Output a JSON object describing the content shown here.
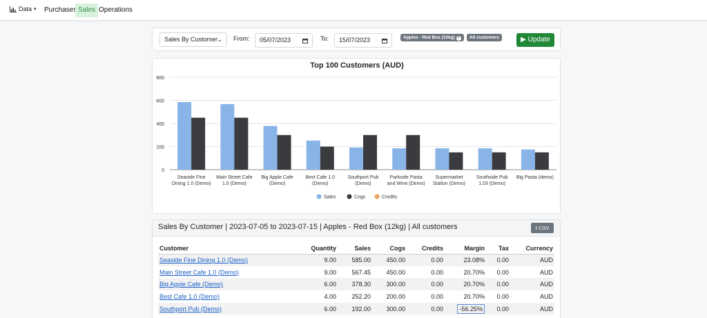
{
  "nav": {
    "data_label": "Data",
    "links": [
      "Purchases",
      "Sales",
      "Operations"
    ]
  },
  "filters": {
    "report_type": "Sales By Customer",
    "from_label": "From:",
    "from_value": "05/07/2023",
    "to_label": "To:",
    "to_value": "15/07/2023",
    "tags": [
      "Apples - Red Box (12kg)",
      "All customers"
    ],
    "update_label": "Update"
  },
  "chart_data": {
    "type": "bar",
    "title": "Top 100 Customers (AUD)",
    "categories": [
      [
        "Seaside Fine",
        "Dining 1.0 (Demo)"
      ],
      [
        "Main Street Cafe",
        "1.0 (Demo)"
      ],
      [
        "Big Apple Cafe",
        "(Demo)"
      ],
      [
        "Best Cafe 1.0",
        "(Demo)"
      ],
      [
        "Southport Pub",
        "(Demo)"
      ],
      [
        "Parkside Pasta",
        "and Wine (Demo)"
      ],
      [
        "Supermarket",
        "Station (Demo)"
      ],
      [
        "Southside Pub",
        "1.03 (Demo)"
      ],
      [
        "Big Pasta (demo)"
      ]
    ],
    "series": [
      {
        "name": "Sales",
        "color": "#89b4e8",
        "values": [
          585,
          567.45,
          378.3,
          252.2,
          192,
          185,
          185,
          185,
          175
        ]
      },
      {
        "name": "Cogs",
        "color": "#3a3b3f",
        "values": [
          450,
          450,
          300,
          200,
          300,
          300,
          150,
          150,
          150
        ]
      },
      {
        "name": "Credits",
        "color": "#f0a35c",
        "values": [
          0,
          0,
          0,
          0,
          0,
          0,
          0,
          0,
          0
        ]
      }
    ],
    "yticks": [
      0,
      200,
      400,
      600,
      800
    ],
    "ylim": [
      0,
      800
    ],
    "grid": true,
    "legend": "bottom"
  },
  "table": {
    "title": "Sales By Customer | 2023-07-05 to 2023-07-15 | Apples - Red Box (12kg) | All customers",
    "csv_label": "CSV",
    "columns": [
      "Customer",
      "Quantity",
      "Sales",
      "Cogs",
      "Credits",
      "Margin",
      "Tax",
      "Currency"
    ],
    "rows": [
      [
        "Seaside Fine Dining 1.0 (Demo)",
        "9.00",
        "585.00",
        "450.00",
        "0.00",
        "23.08%",
        "0.00",
        "AUD"
      ],
      [
        "Main Street Cafe 1.0 (Demo)",
        "9.00",
        "567.45",
        "450.00",
        "0.00",
        "20.70%",
        "0.00",
        "AUD"
      ],
      [
        "Big Apple Cafe (Demo)",
        "6.00",
        "378.30",
        "300.00",
        "0.00",
        "20.70%",
        "0.00",
        "AUD"
      ],
      [
        "Best Cafe 1.0 (Demo)",
        "4.00",
        "252.20",
        "200.00",
        "0.00",
        "20.70%",
        "0.00",
        "AUD"
      ],
      [
        "Southport Pub (Demo)",
        "6.00",
        "192.00",
        "300.00",
        "0.00",
        "-56.25%",
        "0.00",
        "AUD"
      ]
    ]
  }
}
